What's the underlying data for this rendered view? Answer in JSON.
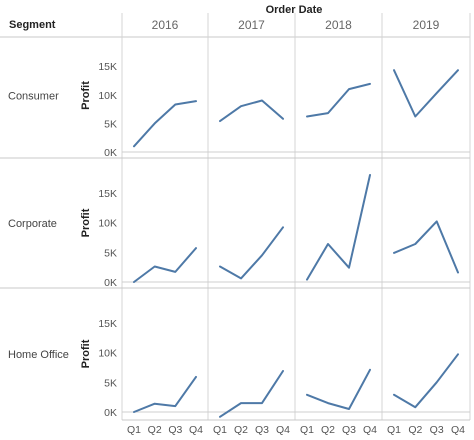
{
  "chart_data": {
    "type": "line",
    "column_header": "Order Date",
    "row_header": "Segment",
    "ylabel": "Profit",
    "columns": [
      "2016",
      "2017",
      "2018",
      "2019"
    ],
    "rows": [
      "Consumer",
      "Corporate",
      "Home Office"
    ],
    "x": [
      "Q1",
      "Q2",
      "Q3",
      "Q4"
    ],
    "ylim": [
      0,
      18000
    ],
    "yticks": [
      0,
      5000,
      10000,
      15000
    ],
    "ytick_labels": [
      "0K",
      "5K",
      "10K",
      "15K"
    ],
    "series": [
      {
        "segment": "Consumer",
        "year": "2016",
        "values": [
          1000,
          5000,
          8300,
          8900
        ]
      },
      {
        "segment": "Consumer",
        "year": "2017",
        "values": [
          5400,
          8000,
          9000,
          5800
        ]
      },
      {
        "segment": "Consumer",
        "year": "2018",
        "values": [
          6200,
          6800,
          11000,
          11900
        ]
      },
      {
        "segment": "Consumer",
        "year": "2019",
        "values": [
          14300,
          6200,
          10300,
          14300
        ]
      },
      {
        "segment": "Corporate",
        "year": "2016",
        "values": [
          0,
          2600,
          1700,
          5700
        ]
      },
      {
        "segment": "Corporate",
        "year": "2017",
        "values": [
          2600,
          600,
          4500,
          9200
        ]
      },
      {
        "segment": "Corporate",
        "year": "2018",
        "values": [
          400,
          6400,
          2400,
          18000
        ]
      },
      {
        "segment": "Corporate",
        "year": "2019",
        "values": [
          4900,
          6400,
          10200,
          1600
        ]
      },
      {
        "segment": "Home Office",
        "year": "2016",
        "values": [
          0,
          1400,
          1000,
          5900
        ]
      },
      {
        "segment": "Home Office",
        "year": "2017",
        "values": [
          -800,
          1500,
          1500,
          6900
        ]
      },
      {
        "segment": "Home Office",
        "year": "2018",
        "values": [
          2900,
          1500,
          500,
          7100
        ]
      },
      {
        "segment": "Home Office",
        "year": "2019",
        "values": [
          2900,
          800,
          5000,
          9700
        ]
      }
    ]
  },
  "colors": {
    "line": "#4e79a7"
  }
}
